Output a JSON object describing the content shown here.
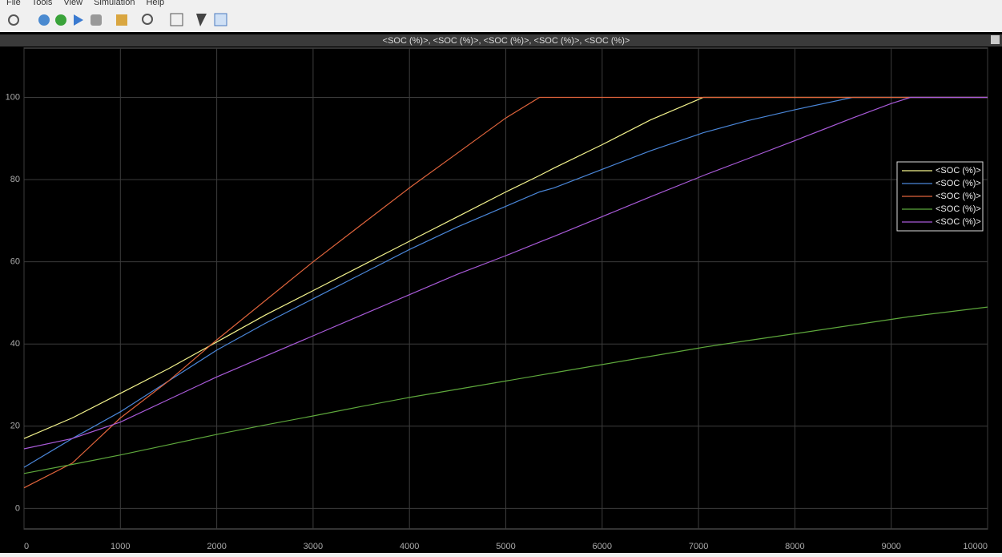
{
  "menu": [
    "File",
    "Tools",
    "View",
    "Simulation",
    "Help"
  ],
  "chart_data": {
    "type": "line",
    "title": "<SOC (%)>, <SOC (%)>, <SOC (%)>, <SOC (%)>, <SOC (%)>",
    "x": [
      0,
      500,
      1000,
      1500,
      2000,
      2500,
      3000,
      3500,
      4000,
      4500,
      5000,
      5350,
      5500,
      6000,
      6500,
      7000,
      7050,
      7500,
      8000,
      8600,
      9000,
      9200,
      10000
    ],
    "series": [
      {
        "name": "<SOC (%)>",
        "color": "#f2f28c",
        "values": [
          17,
          22,
          28,
          34,
          40.5,
          47,
          53,
          59,
          65,
          71,
          77,
          81,
          82.8,
          88.5,
          94.5,
          99.5,
          100,
          100,
          100,
          100,
          100,
          100,
          100
        ]
      },
      {
        "name": "<SOC (%)>",
        "color": "#4a86d8",
        "values": [
          10,
          17,
          23.5,
          31,
          38.5,
          45,
          51,
          57,
          63,
          68.5,
          73.5,
          77,
          78,
          82.5,
          87,
          91,
          91.4,
          94.3,
          97,
          100,
          100,
          100,
          100
        ]
      },
      {
        "name": "<SOC (%)>",
        "color": "#e0643c",
        "values": [
          5,
          11,
          22,
          31,
          41,
          50.5,
          60,
          69,
          78,
          86.5,
          95,
          100,
          100,
          100,
          100,
          100,
          100,
          100,
          100,
          100,
          100,
          100,
          100
        ]
      },
      {
        "name": "<SOC (%)>",
        "color": "#5ea83c",
        "values": [
          8.5,
          10.7,
          13,
          15.5,
          18,
          20.3,
          22.5,
          24.8,
          27,
          29,
          31,
          32.4,
          33,
          35,
          37,
          39,
          39.2,
          40.8,
          42.5,
          44.6,
          46,
          46.7,
          49
        ]
      },
      {
        "name": "<SOC (%)>",
        "color": "#a85ad8",
        "values": [
          14.5,
          17,
          21,
          26.5,
          32,
          37,
          42,
          47,
          52,
          57,
          61.5,
          64.8,
          66.2,
          71,
          75.8,
          80.5,
          81,
          85,
          89.5,
          95,
          98.5,
          100,
          100
        ]
      }
    ],
    "xlim": [
      0,
      10000
    ],
    "xticks": [
      0,
      1000,
      2000,
      3000,
      4000,
      5000,
      6000,
      7000,
      8000,
      9000,
      10000
    ],
    "ylim": [
      -5,
      112
    ],
    "yticks": [
      0,
      20,
      40,
      60,
      80,
      100
    ],
    "grid": true,
    "legend_position": "right"
  }
}
